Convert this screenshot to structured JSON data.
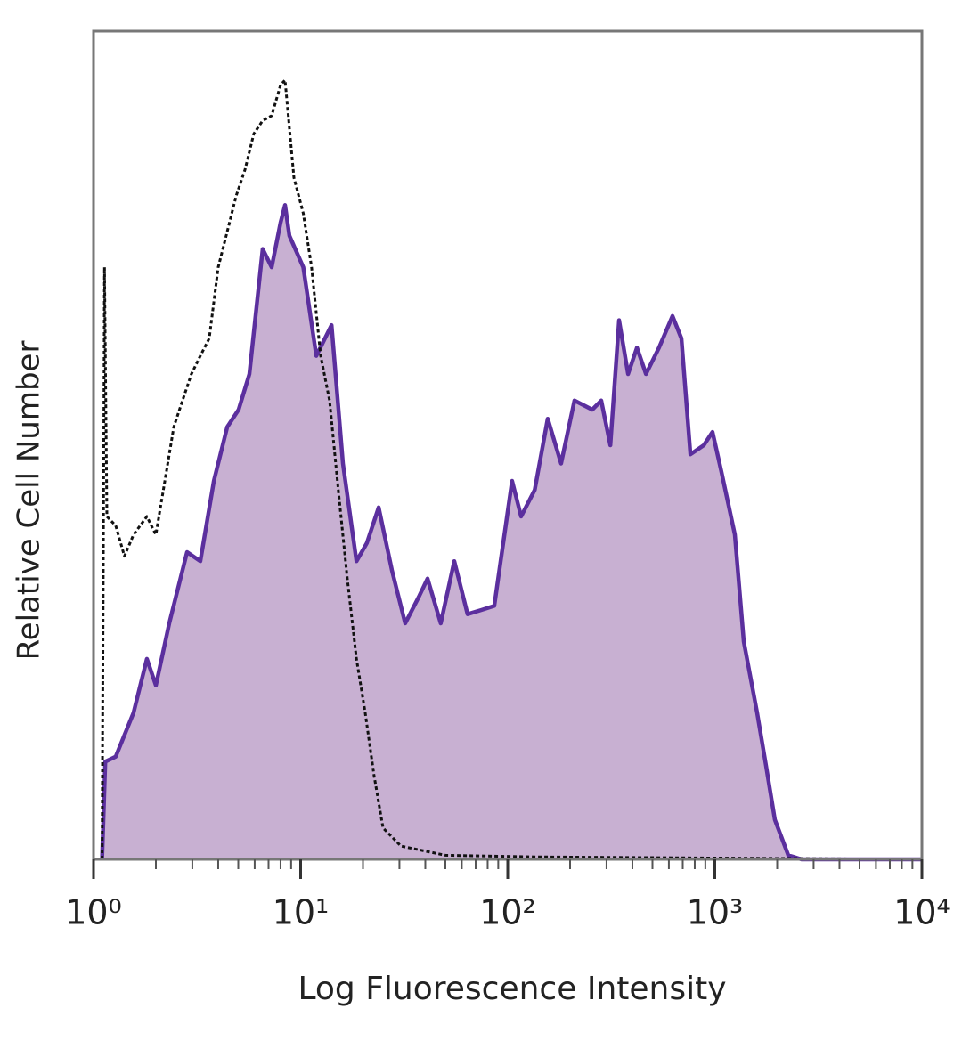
{
  "chart_data": {
    "type": "histogram-overlay",
    "x_label": "Log Fluorescence Intensity",
    "y_label": "Relative Cell Number",
    "x_log": true,
    "xlim": [
      1,
      10000
    ],
    "xticks": [
      {
        "value": 1,
        "label": "10⁰"
      },
      {
        "value": 10,
        "label": "10¹"
      },
      {
        "value": 100,
        "label": "10²"
      },
      {
        "value": 1000,
        "label": "10³"
      },
      {
        "value": 10000,
        "label": "10⁴"
      }
    ],
    "ylim": [
      0,
      100
    ],
    "series": [
      {
        "color": "#5b2f9e",
        "fill": "#c8b0d2",
        "dash": false,
        "x": [
          1.1,
          1.14,
          1.28,
          1.56,
          1.81,
          2.0,
          2.32,
          2.83,
          3.28,
          3.81,
          4.42,
          5.02,
          5.66,
          6.56,
          7.25,
          8.0,
          8.41,
          8.83,
          10.3,
          11.9,
          14.1,
          16.0,
          18.6,
          20.9,
          23.8,
          27.6,
          32.0,
          37.2,
          41.0,
          47.5,
          55.2,
          64.0,
          74.3,
          86.1,
          105,
          116,
          135,
          156,
          181,
          210,
          256,
          283,
          313,
          345,
          381,
          421,
          465,
          538,
          625,
          690,
          762,
          884,
          975,
          1076,
          1250,
          1380,
          1600,
          1767,
          1950,
          2264,
          2625,
          10000
        ],
        "values": [
          0,
          11.8,
          12.4,
          17.7,
          24.2,
          21.0,
          28.5,
          37.1,
          36.0,
          45.7,
          52.2,
          54.3,
          58.6,
          73.7,
          71.5,
          76.9,
          79.0,
          75.3,
          71.5,
          60.8,
          64.5,
          47.8,
          36.0,
          38.2,
          42.5,
          34.9,
          28.5,
          31.7,
          33.9,
          28.5,
          36.0,
          29.6,
          30.1,
          30.6,
          45.7,
          41.4,
          44.6,
          53.2,
          47.8,
          55.4,
          54.3,
          55.4,
          50.0,
          65.1,
          58.6,
          61.8,
          58.6,
          61.8,
          65.6,
          62.9,
          48.9,
          50.0,
          51.6,
          46.8,
          39.2,
          26.3,
          17.7,
          11.3,
          4.8,
          0.5,
          0,
          0
        ]
      },
      {
        "color": "#111111",
        "fill": null,
        "dash": true,
        "x": [
          1.1,
          1.13,
          1.16,
          1.28,
          1.41,
          1.56,
          1.81,
          2.0,
          2.21,
          2.44,
          2.69,
          2.97,
          3.28,
          3.62,
          4.0,
          4.42,
          4.88,
          5.39,
          5.94,
          6.56,
          7.25,
          8.0,
          8.41,
          9.28,
          10.3,
          11.3,
          12.5,
          13.8,
          15.2,
          16.8,
          18.6,
          20.5,
          22.6,
          25.0,
          30.5,
          50.0,
          135,
          10000
        ],
        "values": [
          0,
          71.5,
          41.4,
          40.3,
          36.6,
          39.2,
          41.4,
          39.2,
          45.7,
          52.2,
          55.4,
          58.6,
          60.8,
          62.9,
          71.5,
          75.8,
          80.1,
          83.3,
          87.6,
          89.2,
          89.8,
          93.5,
          94.1,
          82.3,
          78.0,
          71.5,
          60.8,
          55.4,
          44.6,
          33.9,
          24.2,
          17.7,
          10.2,
          3.8,
          1.6,
          0.5,
          0.3,
          0
        ]
      }
    ]
  }
}
